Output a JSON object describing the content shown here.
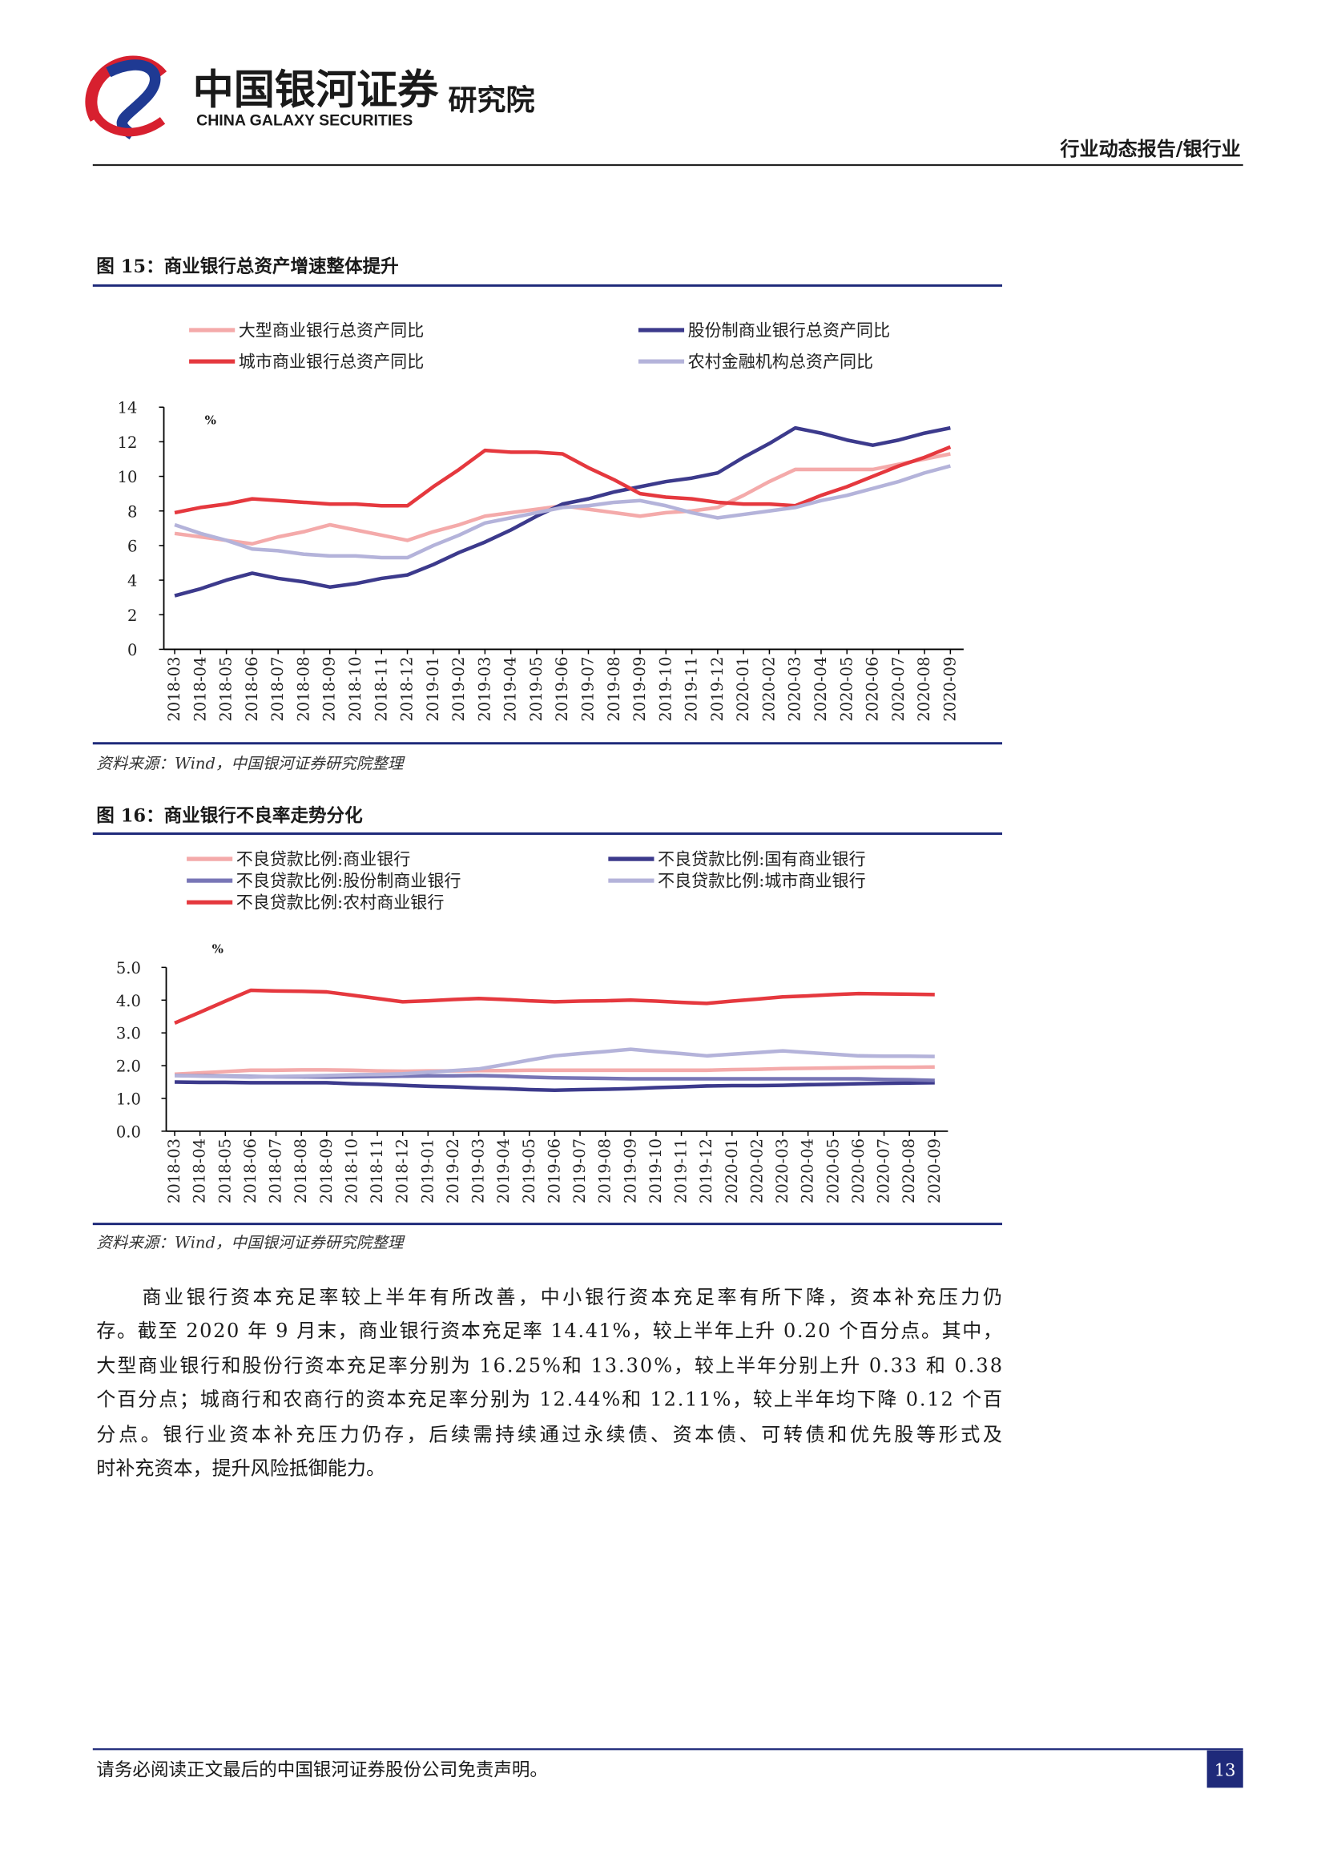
{
  "header": {
    "logo_cn": "中国银河证券",
    "logo_en": "CHINA GALAXY SECURITIES",
    "institute": "研究院",
    "report_type": "行业动态报告/银行业"
  },
  "figures": [
    {
      "caption": "图 15：商业银行总资产增速整体提升",
      "source": "资料来源：Wind，中国银河证券研究院整理"
    },
    {
      "caption": "图 16：商业银行不良率走势分化",
      "source": "资料来源：Wind，中国银河证券研究院整理"
    }
  ],
  "chart_data": [
    {
      "type": "line",
      "ylabel": "%",
      "categories": [
        "2018-03",
        "2018-04",
        "2018-05",
        "2018-06",
        "2018-07",
        "2018-08",
        "2018-09",
        "2018-10",
        "2018-11",
        "2018-12",
        "2019-01",
        "2019-02",
        "2019-03",
        "2019-04",
        "2019-05",
        "2019-06",
        "2019-07",
        "2019-08",
        "2019-09",
        "2019-10",
        "2019-11",
        "2019-12",
        "2020-01",
        "2020-02",
        "2020-03",
        "2020-04",
        "2020-05",
        "2020-06",
        "2020-07",
        "2020-08",
        "2020-09"
      ],
      "ylim": [
        0,
        14
      ],
      "yticks": [
        0,
        2,
        4,
        6,
        8,
        10,
        12,
        14
      ],
      "series": [
        {
          "name": "大型商业银行总资产同比",
          "color": "#f4aaaa",
          "values": [
            6.7,
            6.5,
            6.3,
            6.1,
            6.5,
            6.8,
            7.2,
            6.9,
            6.6,
            6.3,
            6.8,
            7.2,
            7.7,
            7.9,
            8.1,
            8.3,
            8.1,
            7.9,
            7.7,
            7.9,
            8.0,
            8.2,
            8.9,
            9.7,
            10.4,
            10.4,
            10.4,
            10.4,
            10.7,
            11.0,
            11.3
          ]
        },
        {
          "name": "股份制商业银行总资产同比",
          "color": "#3c3a8c",
          "values": [
            3.1,
            3.5,
            4.0,
            4.4,
            4.1,
            3.9,
            3.6,
            3.8,
            4.1,
            4.3,
            4.9,
            5.6,
            6.2,
            6.9,
            7.7,
            8.4,
            8.7,
            9.1,
            9.4,
            9.7,
            9.9,
            10.2,
            11.1,
            11.9,
            12.8,
            12.5,
            12.1,
            11.8,
            12.1,
            12.5,
            12.8
          ]
        },
        {
          "name": "城市商业银行总资产同比",
          "color": "#e5383e",
          "values": [
            7.9,
            8.2,
            8.4,
            8.7,
            8.6,
            8.5,
            8.4,
            8.4,
            8.3,
            8.3,
            9.4,
            10.4,
            11.5,
            11.4,
            11.4,
            11.3,
            10.5,
            9.8,
            9.0,
            8.8,
            8.7,
            8.5,
            8.4,
            8.4,
            8.3,
            8.9,
            9.4,
            10.0,
            10.6,
            11.1,
            11.7
          ]
        },
        {
          "name": "农村金融机构总资产同比",
          "color": "#b4b3da",
          "values": [
            7.2,
            6.7,
            6.3,
            5.8,
            5.7,
            5.5,
            5.4,
            5.4,
            5.3,
            5.3,
            6.0,
            6.6,
            7.3,
            7.6,
            7.9,
            8.2,
            8.3,
            8.5,
            8.6,
            8.3,
            7.9,
            7.6,
            7.8,
            8.0,
            8.2,
            8.6,
            8.9,
            9.3,
            9.7,
            10.2,
            10.6
          ]
        }
      ]
    },
    {
      "type": "line",
      "ylabel": "%",
      "categories": [
        "2018-03",
        "2018-04",
        "2018-05",
        "2018-06",
        "2018-07",
        "2018-08",
        "2018-09",
        "2018-10",
        "2018-11",
        "2018-12",
        "2019-01",
        "2019-02",
        "2019-03",
        "2019-04",
        "2019-05",
        "2019-06",
        "2019-07",
        "2019-08",
        "2019-09",
        "2019-10",
        "2019-11",
        "2019-12",
        "2020-01",
        "2020-02",
        "2020-03",
        "2020-04",
        "2020-05",
        "2020-06",
        "2020-07",
        "2020-08",
        "2020-09"
      ],
      "ylim": [
        0,
        5
      ],
      "yticks": [
        {
          "value": 0,
          "label": "0.0"
        },
        {
          "value": 1,
          "label": "1.0"
        },
        {
          "value": 2,
          "label": "2.0"
        },
        {
          "value": 3,
          "label": "3.0"
        },
        {
          "value": 4,
          "label": "4.0"
        },
        {
          "value": 5,
          "label": "5.0"
        }
      ],
      "series": [
        {
          "name": "不良贷款比例:商业银行",
          "color": "#f4aaaa",
          "values": [
            1.74,
            1.78,
            1.82,
            1.86,
            1.86,
            1.87,
            1.87,
            1.86,
            1.84,
            1.83,
            1.84,
            1.84,
            1.85,
            1.85,
            1.86,
            1.86,
            1.86,
            1.86,
            1.86,
            1.86,
            1.86,
            1.86,
            1.88,
            1.89,
            1.91,
            1.92,
            1.93,
            1.94,
            1.95,
            1.95,
            1.96
          ]
        },
        {
          "name": "不良贷款比例:国有商业银行",
          "color": "#3c3a8c",
          "values": [
            1.5,
            1.49,
            1.49,
            1.48,
            1.48,
            1.48,
            1.48,
            1.45,
            1.43,
            1.4,
            1.37,
            1.35,
            1.32,
            1.3,
            1.27,
            1.25,
            1.27,
            1.28,
            1.3,
            1.33,
            1.35,
            1.38,
            1.39,
            1.39,
            1.4,
            1.42,
            1.43,
            1.45,
            1.46,
            1.47,
            1.48
          ]
        },
        {
          "name": "不良贷款比例:股份制商业银行",
          "color": "#7876b6",
          "values": [
            1.7,
            1.69,
            1.68,
            1.67,
            1.66,
            1.66,
            1.65,
            1.66,
            1.67,
            1.68,
            1.69,
            1.69,
            1.7,
            1.68,
            1.65,
            1.63,
            1.62,
            1.61,
            1.6,
            1.6,
            1.6,
            1.6,
            1.6,
            1.6,
            1.6,
            1.6,
            1.6,
            1.6,
            1.58,
            1.57,
            1.55
          ]
        },
        {
          "name": "不良贷款比例:城市商业银行",
          "color": "#b4b3da",
          "values": [
            1.7,
            1.68,
            1.67,
            1.65,
            1.67,
            1.68,
            1.7,
            1.72,
            1.73,
            1.75,
            1.8,
            1.85,
            1.9,
            2.03,
            2.17,
            2.3,
            2.37,
            2.43,
            2.5,
            2.43,
            2.37,
            2.3,
            2.35,
            2.4,
            2.45,
            2.4,
            2.35,
            2.3,
            2.29,
            2.29,
            2.28
          ]
        },
        {
          "name": "不良贷款比例:农村商业银行",
          "color": "#e5383e",
          "values": [
            3.3,
            3.63,
            3.97,
            4.3,
            4.28,
            4.27,
            4.25,
            4.15,
            4.05,
            3.95,
            3.98,
            4.02,
            4.05,
            4.02,
            3.98,
            3.95,
            3.97,
            3.98,
            4.0,
            3.97,
            3.93,
            3.9,
            3.97,
            4.03,
            4.1,
            4.13,
            4.17,
            4.2,
            4.19,
            4.18,
            4.17
          ]
        }
      ]
    }
  ],
  "body": {
    "lines": [
      "商业银行资本充足率较上半年有所改善，中小银行资本充足率有所下降，资本补充压力仍",
      "存。截至 2020 年 9 月末，商业银行资本充足率 14.41%，较上半年上升 0.20 个百分点。其中，",
      "大型商业银行和股份行资本充足率分别为 16.25%和 13.30%，较上半年分别上升 0.33 和 0.38",
      "个百分点；城商行和农商行的资本充足率分别为 12.44%和 12.11%，较上半年均下降 0.12 个百",
      "分点。银行业资本补充压力仍存，后续需持续通过永续债、资本债、可转债和优先股等形式及",
      "时补充资本，提升风险抵御能力。"
    ]
  },
  "footer": {
    "disclaimer": "请务必阅读正文最后的中国银河证券股份公司免责声明。",
    "page": 13
  }
}
